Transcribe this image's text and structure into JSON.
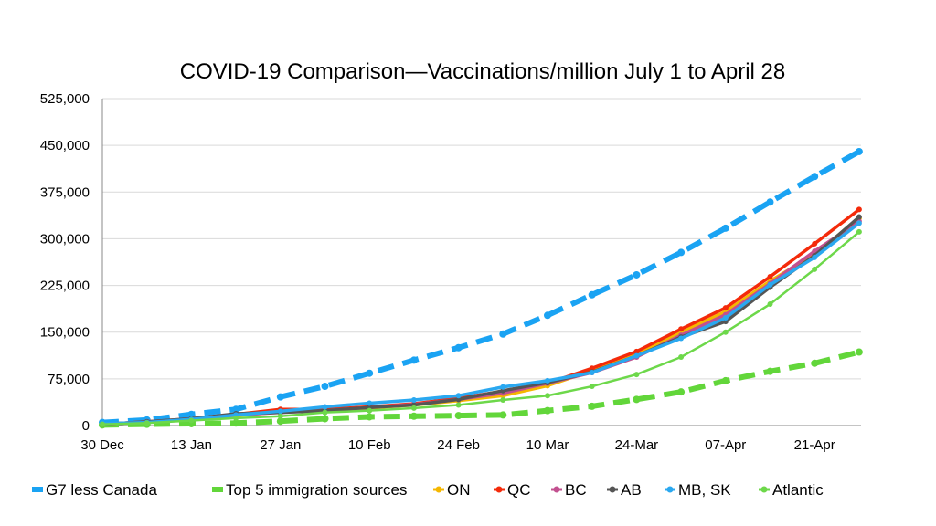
{
  "chart_data": {
    "type": "line",
    "title": "COVID-19 Comparison—Vaccinations/million July 1 to April 28",
    "xlabel": "",
    "ylabel": "",
    "ylim": [
      0,
      525000
    ],
    "yticks": [
      "0",
      "75,000",
      "150,000",
      "225,000",
      "300,000",
      "375,000",
      "450,000",
      "525,000"
    ],
    "ytick_values": [
      0,
      75000,
      150000,
      225000,
      300000,
      375000,
      450000,
      525000
    ],
    "xtick_labels": [
      "30 Dec",
      "13 Jan",
      "27 Jan",
      "10 Feb",
      "24 Feb",
      "10 Mar",
      "24-Mar",
      "07-Apr",
      "21-Apr"
    ],
    "xtick_indices": [
      0,
      2,
      4,
      6,
      8,
      10,
      12,
      14,
      16
    ],
    "x": [
      "30 Dec",
      "06 Jan",
      "13 Jan",
      "20 Jan",
      "27 Jan",
      "03 Feb",
      "10 Feb",
      "17 Feb",
      "24 Feb",
      "03 Mar",
      "10 Mar",
      "17 Mar",
      "24 Mar",
      "31 Mar",
      "07 Apr",
      "14 Apr",
      "21 Apr",
      "28 Apr"
    ],
    "grid": true,
    "legend_position": "bottom",
    "series": [
      {
        "name": "G7 less Canada",
        "color": "#1AA3F3",
        "style": "dashed",
        "values": [
          5000,
          9000,
          18000,
          26000,
          46000,
          63000,
          84000,
          105000,
          125000,
          147000,
          177000,
          210000,
          242000,
          278000,
          317000,
          359000,
          400000,
          440000
        ]
      },
      {
        "name": "Top 5 immigration sources",
        "color": "#62D63A",
        "style": "dashed",
        "values": [
          1000,
          2000,
          3000,
          4000,
          7000,
          11000,
          14000,
          15000,
          16000,
          17000,
          24000,
          31000,
          42000,
          54000,
          72000,
          87000,
          100000,
          118000
        ]
      },
      {
        "name": "ON",
        "color": "#F5B700",
        "style": "solid",
        "values": [
          2000,
          6000,
          10000,
          16000,
          22000,
          24000,
          28000,
          33000,
          40000,
          48000,
          64000,
          88000,
          115000,
          150000,
          183000,
          232000,
          275000,
          333000
        ]
      },
      {
        "name": "QC",
        "color": "#F42A0A",
        "style": "solid",
        "values": [
          2000,
          6000,
          11000,
          18000,
          26000,
          26000,
          30000,
          35000,
          44000,
          55000,
          68000,
          92000,
          119000,
          155000,
          189000,
          239000,
          292000,
          347000
        ]
      },
      {
        "name": "BC",
        "color": "#C2508F",
        "style": "solid",
        "values": [
          2000,
          6000,
          10000,
          17000,
          21000,
          24000,
          29000,
          34000,
          42000,
          52000,
          68000,
          85000,
          110000,
          145000,
          178000,
          228000,
          280000,
          328000
        ]
      },
      {
        "name": "AB",
        "color": "#555555",
        "style": "solid",
        "values": [
          2000,
          6000,
          11000,
          19000,
          21000,
          24000,
          29000,
          33000,
          42000,
          56000,
          69000,
          86000,
          112000,
          142000,
          167000,
          222000,
          273000,
          335000
        ]
      },
      {
        "name": "MB, SK",
        "color": "#2AA8F0",
        "style": "solid",
        "values": [
          3000,
          5000,
          10000,
          17000,
          23000,
          30000,
          36000,
          41000,
          48000,
          62000,
          72000,
          85000,
          112000,
          140000,
          173000,
          226000,
          270000,
          325000
        ]
      },
      {
        "name": "Atlantic",
        "color": "#6DD84A",
        "style": "solid",
        "values": [
          2000,
          4000,
          8000,
          12000,
          15000,
          21000,
          24000,
          28000,
          33000,
          41000,
          48000,
          63000,
          82000,
          110000,
          150000,
          195000,
          251000,
          311000
        ]
      }
    ]
  }
}
